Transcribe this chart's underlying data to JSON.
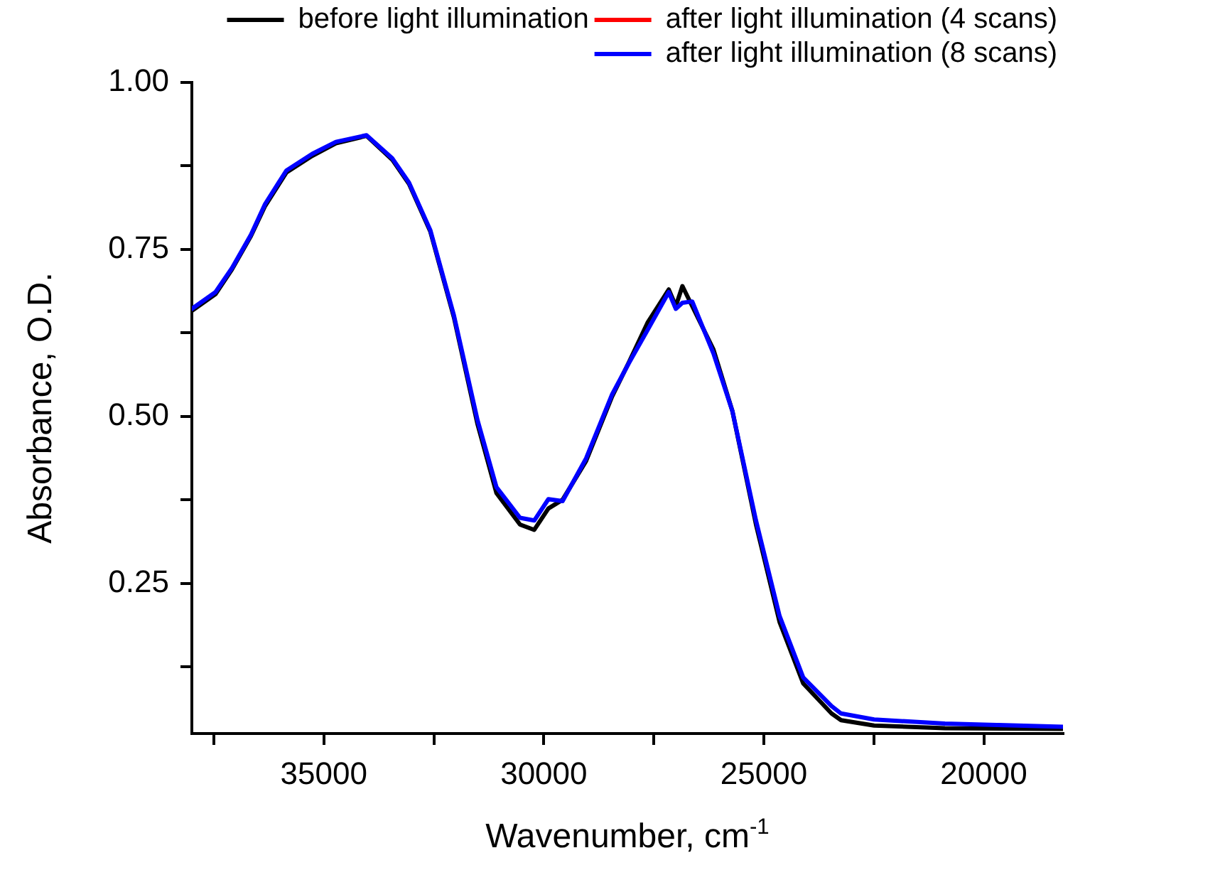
{
  "chart_data": {
    "type": "line",
    "xlabel": "Wavenumber, cm$^{-1}$",
    "ylabel": "Absorbance, O.D.",
    "xlim": [
      38000,
      18200
    ],
    "ylim": [
      0.025,
      1.0
    ],
    "xticks": [
      {
        "value": 37500,
        "label": null
      },
      35000,
      {
        "value": 32500,
        "label": null
      },
      30000,
      {
        "value": 27500,
        "label": null
      },
      25000,
      {
        "value": 22500,
        "label": null
      },
      20000
    ],
    "yticks": [
      {
        "value": 0.125,
        "label": null
      },
      {
        "value": 0.25,
        "label": "0.25"
      },
      {
        "value": 0.375,
        "label": null
      },
      {
        "value": 0.5,
        "label": "0.50"
      },
      {
        "value": 0.625,
        "label": null
      },
      {
        "value": 0.75,
        "label": "0.75"
      },
      {
        "value": 0.875,
        "label": null
      },
      {
        "value": 1.0,
        "label": "1.00"
      }
    ],
    "legend": "top right",
    "marker": "none",
    "line_style": "solid",
    "x": [
      38000,
      37463,
      37089,
      36657,
      36335,
      35853,
      35264,
      34726,
      34030,
      33440,
      33064,
      32581,
      32043,
      31506,
      31077,
      30541,
      30218,
      29896,
      29574,
      29040,
      28447,
      28073,
      27644,
      27161,
      27000,
      26850,
      26627,
      26144,
      25715,
      25178,
      24642,
      24105,
      23461,
      23244,
      22493,
      20883,
      18200
    ],
    "series": [
      {
        "name": "before light illumination",
        "color": "#000000",
        "values": [
          0.658,
          0.683,
          0.72,
          0.77,
          0.815,
          0.865,
          0.89,
          0.909,
          0.92,
          0.884,
          0.848,
          0.777,
          0.648,
          0.488,
          0.385,
          0.338,
          0.33,
          0.362,
          0.375,
          0.433,
          0.53,
          0.58,
          0.64,
          0.69,
          0.665,
          0.695,
          0.665,
          0.6,
          0.508,
          0.338,
          0.192,
          0.1,
          0.055,
          0.045,
          0.037,
          0.033,
          0.032
        ]
      },
      {
        "name": "after light illumination (4 scans)",
        "color": "#ff0000",
        "values": [
          null,
          null,
          null,
          null,
          null,
          null,
          null,
          null,
          null,
          null,
          null,
          null,
          null,
          null,
          null,
          null,
          null,
          null,
          null,
          null,
          null,
          null,
          null,
          null,
          null,
          null,
          null,
          null,
          null,
          null,
          null,
          null,
          null,
          null,
          null,
          null,
          null
        ]
      },
      {
        "name": "after light illumination (8 scans)",
        "color": "#0000ff",
        "values": [
          0.661,
          0.686,
          0.722,
          0.772,
          0.818,
          0.868,
          0.893,
          0.911,
          0.921,
          0.886,
          0.85,
          0.779,
          0.651,
          0.494,
          0.394,
          0.348,
          0.344,
          0.376,
          0.373,
          0.437,
          0.533,
          0.579,
          0.629,
          0.686,
          0.661,
          0.67,
          0.672,
          0.594,
          0.508,
          0.344,
          0.201,
          0.109,
          0.066,
          0.055,
          0.046,
          0.04,
          0.035
        ]
      }
    ]
  }
}
